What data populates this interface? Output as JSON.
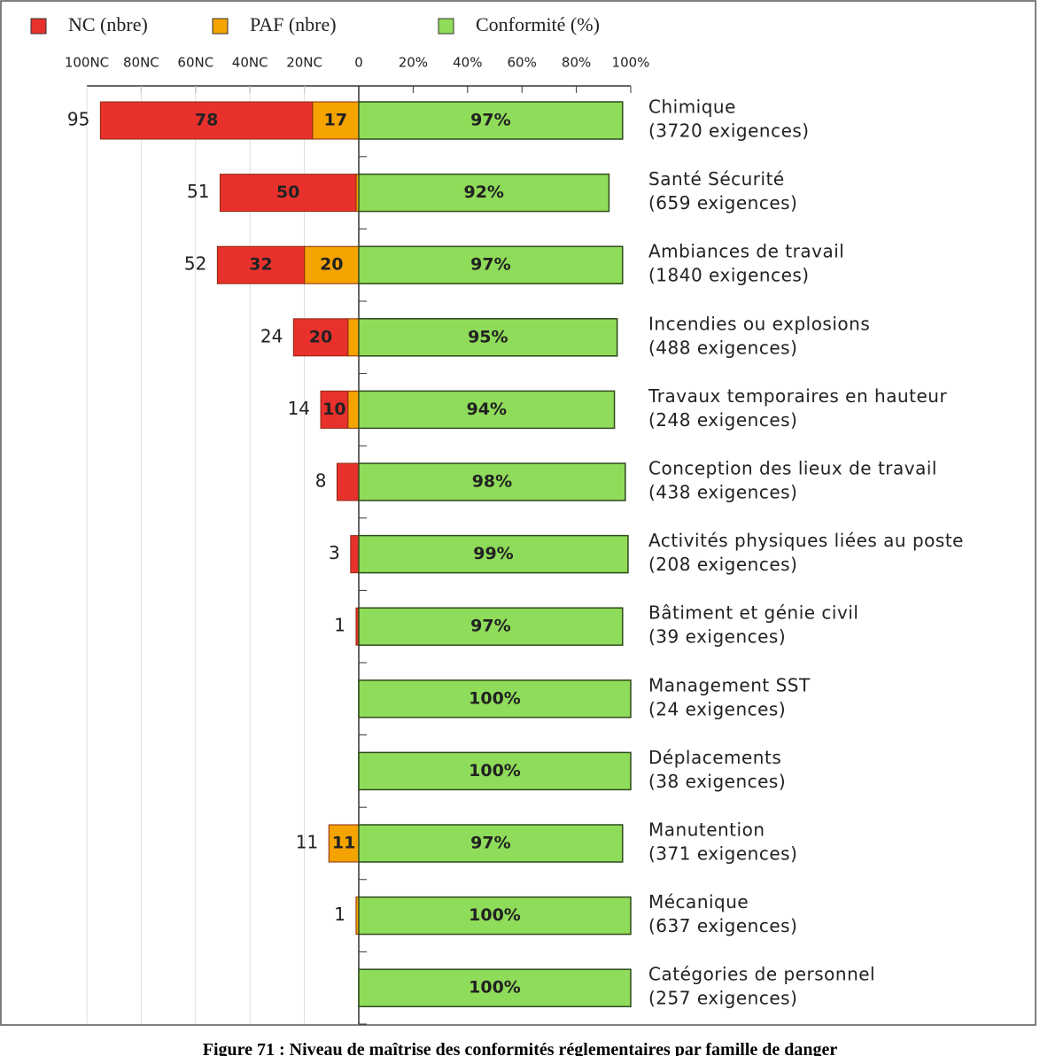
{
  "chart_data": {
    "type": "diverging_bar",
    "caption": "Figure 71 : Niveau de maîtrise des conformités réglementaires par famille de danger",
    "categories": [
      "Chimique",
      "Santé Sécurité",
      "Ambiances de travail",
      "Incendies ou explosions",
      "Travaux temporaires en hauteur",
      "Conception des lieux de travail",
      "Activités physiques liées au poste",
      "Bâtiment et génie civil",
      "Management SST",
      "Déplacements",
      "Manutention",
      "Mécanique",
      "Catégories de personnel"
    ],
    "category_notes": [
      "(3720 exigences)",
      "(659 exigences)",
      "(1840 exigences)",
      "(488 exigences)",
      "(248 exigences)",
      "(438 exigences)",
      "(208 exigences)",
      "(39 exigences)",
      "(24 exigences)",
      "(38 exigences)",
      "(371 exigences)",
      "(637 exigences)",
      "(257 exigences)"
    ],
    "totals": [
      95,
      51,
      52,
      24,
      14,
      8,
      3,
      1,
      null,
      null,
      11,
      1,
      null
    ],
    "series": [
      {
        "name": "NC (nbre)",
        "color": "#e8312c",
        "side": "left",
        "values": [
          78,
          50,
          32,
          20,
          10,
          8,
          3,
          1,
          0,
          0,
          0,
          0,
          0
        ]
      },
      {
        "name": "PAF (nbre)",
        "color": "#f5a300",
        "side": "left",
        "values": [
          17,
          1,
          20,
          4,
          4,
          0,
          0,
          0,
          0,
          0,
          11,
          1,
          0
        ]
      },
      {
        "name": "Conformité (%)",
        "color": "#8fdc5a",
        "side": "right",
        "values": [
          97,
          92,
          97,
          95,
          94,
          98,
          99,
          97,
          100,
          100,
          97,
          100,
          100
        ],
        "value_labels": [
          "97%",
          "92%",
          "97%",
          "95%",
          "94%",
          "98%",
          "99%",
          "97%",
          "100%",
          "100%",
          "97%",
          "100%",
          "100%"
        ]
      }
    ],
    "xlim_left": [
      0,
      100
    ],
    "xticks_left": [
      {
        "value": 20,
        "label": "20NC"
      },
      {
        "value": 40,
        "label": "40NC"
      },
      {
        "value": 60,
        "label": "60NC"
      },
      {
        "value": 80,
        "label": "80NC"
      },
      {
        "value": 100,
        "label": "100NC"
      }
    ],
    "xlim": [
      0,
      100
    ],
    "xticks": [
      0,
      {
        "value": 20,
        "label": "20%"
      },
      {
        "value": 40,
        "label": "40%"
      },
      {
        "value": 60,
        "label": "60%"
      },
      {
        "value": 80,
        "label": "80%"
      },
      {
        "value": 100,
        "label": "100%"
      }
    ],
    "grid_left": true
  }
}
